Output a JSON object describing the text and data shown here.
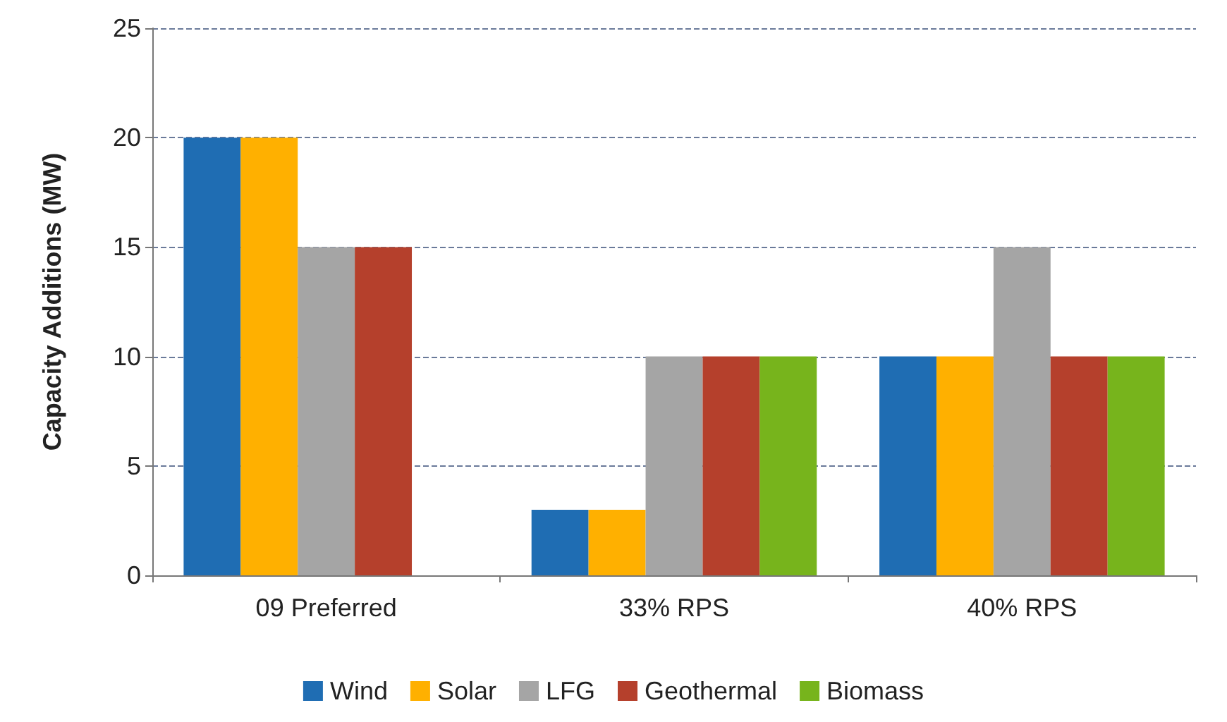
{
  "chart_data": {
    "type": "bar",
    "ylabel": "Capacity Additions (MW)",
    "categories": [
      "09 Preferred",
      "33% RPS",
      "40% RPS"
    ],
    "series": [
      {
        "name": "Wind",
        "color": "#1f6db3",
        "values": [
          20,
          3,
          10
        ]
      },
      {
        "name": "Solar",
        "color": "#ffb000",
        "values": [
          20,
          3,
          10
        ]
      },
      {
        "name": "LFG",
        "color": "#a5a5a5",
        "values": [
          15,
          10,
          15
        ]
      },
      {
        "name": "Geothermal",
        "color": "#b5402c",
        "values": [
          15,
          10,
          10
        ]
      },
      {
        "name": "Biomass",
        "color": "#77b41c",
        "values": [
          0,
          10,
          10
        ]
      }
    ],
    "ylim": [
      0,
      25
    ],
    "yticks": [
      0,
      5,
      10,
      15,
      20,
      25
    ],
    "grid": "y",
    "legend": "bottom"
  }
}
